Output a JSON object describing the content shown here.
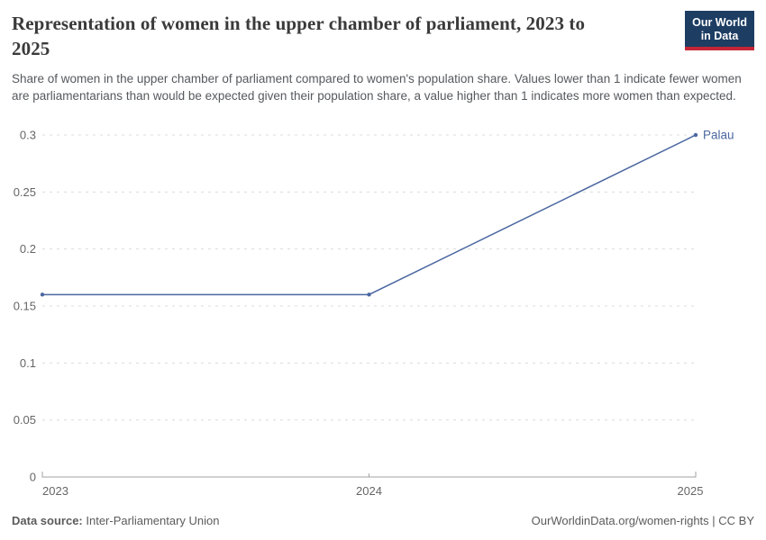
{
  "page": {
    "title_lines": [
      "Representation of women in the upper chamber of parliament, 2023 to",
      "2025"
    ],
    "subtitle": "Share of women in the upper chamber of parliament compared to women's population share. Values lower than 1 indicate fewer women are parliamentarians than would be expected given their population share, a value higher than 1 indicates more women than expected.",
    "logo": {
      "line1": "Our World",
      "line2": "in Data",
      "bg_color": "#1d3d63",
      "bar_color": "#c52536"
    }
  },
  "footer": {
    "source_label": "Data source:",
    "source_value": "Inter-Parliamentary Union",
    "rights": "OurWorldinData.org/women-rights | CC BY"
  },
  "chart_data": {
    "type": "line",
    "title": "Representation of women in the upper chamber of parliament, 2023 to 2025",
    "x": [
      2023,
      2024,
      2025
    ],
    "series": [
      {
        "name": "Palau",
        "values": [
          0.16,
          0.16,
          0.3
        ],
        "color": "#4b67a1"
      }
    ],
    "xlim": [
      2023,
      2025
    ],
    "ylim": [
      0,
      0.3
    ],
    "xticks": [
      2023,
      2024,
      2025
    ],
    "yticks": [
      0,
      0.05,
      0.1,
      0.15,
      0.2,
      0.25,
      0.3
    ],
    "xlabel": "",
    "ylabel": "",
    "grid": "horizontal-dashed",
    "legend_position": "end-of-line-label",
    "colors": {
      "grid": "#dcdcdc",
      "axis": "#a3a3a3",
      "tick_label": "#666666"
    }
  }
}
